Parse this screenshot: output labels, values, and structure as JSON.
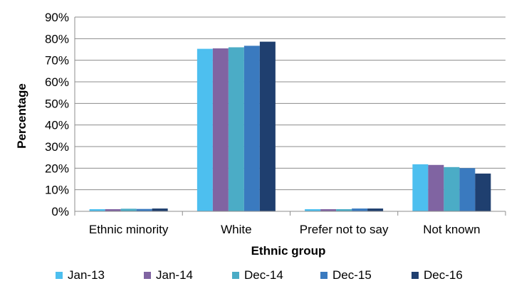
{
  "chart_data": {
    "type": "bar",
    "title": "",
    "xlabel": "Ethnic group",
    "ylabel": "Percentage",
    "categories": [
      "Ethnic minority",
      "White",
      "Prefer not to say",
      "Not known"
    ],
    "ylim": [
      0,
      90
    ],
    "yticks": [
      0,
      10,
      20,
      30,
      40,
      50,
      60,
      70,
      80,
      90
    ],
    "ytick_format": "percent",
    "grid": true,
    "legend": "bottom",
    "series": [
      {
        "name": "Jan-13",
        "color": "#4DBFEF",
        "values": [
          1.0,
          75.3,
          1.0,
          21.8
        ]
      },
      {
        "name": "Jan-14",
        "color": "#8064A2",
        "values": [
          1.0,
          75.5,
          1.0,
          21.5
        ]
      },
      {
        "name": "Dec-14",
        "color": "#4BACC6",
        "values": [
          1.2,
          76.0,
          1.0,
          20.5
        ]
      },
      {
        "name": "Dec-15",
        "color": "#3A7ABF",
        "values": [
          1.1,
          76.7,
          1.3,
          20.0
        ]
      },
      {
        "name": "Dec-16",
        "color": "#1F3F6F",
        "values": [
          1.3,
          78.6,
          1.3,
          17.5
        ]
      }
    ]
  }
}
